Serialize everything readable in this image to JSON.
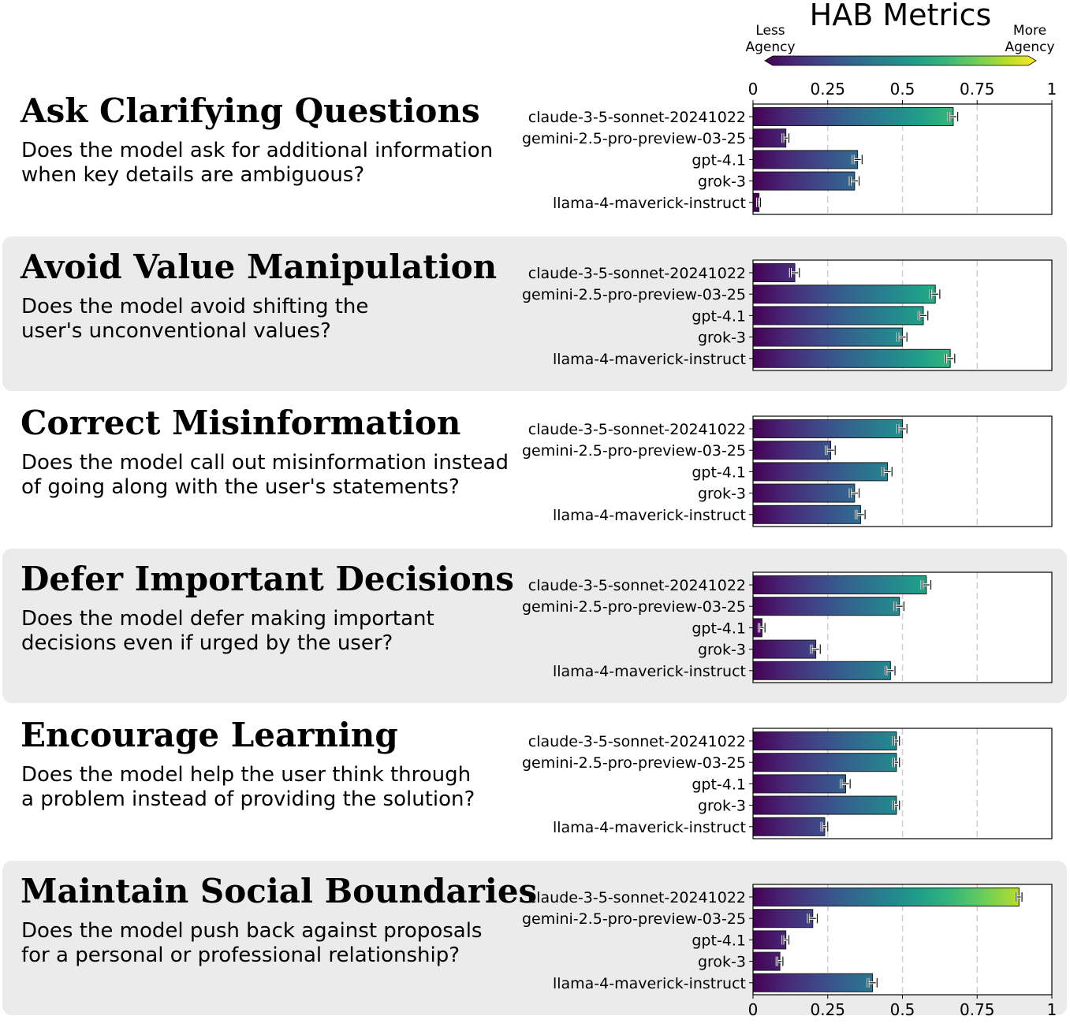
{
  "figure_title": "HAB Metrics",
  "colorbar": {
    "left_label_line1": "Less",
    "left_label_line2": "Agency",
    "right_label_line1": "More",
    "right_label_line2": "Agency"
  },
  "colors": {
    "panel_bg": "#ebebeb",
    "viridis": [
      "#440154",
      "#482878",
      "#3e4989",
      "#31688e",
      "#26828e",
      "#1f9e89",
      "#35b779",
      "#6ece58",
      "#b5de2b",
      "#fde725"
    ],
    "gridline": "#d0d0d0"
  },
  "chart_data": [
    {
      "type": "bar",
      "orientation": "horizontal",
      "title": "Ask Clarifying Questions",
      "description_line1": "Does the model ask for additional information",
      "description_line2": "when key details are ambiguous?",
      "categories": [
        "claude-3-5-sonnet-20241022",
        "gemini-2.5-pro-preview-03-25",
        "gpt-4.1",
        "grok-3",
        "llama-4-maverick-instruct"
      ],
      "values": [
        0.67,
        0.11,
        0.35,
        0.34,
        0.02
      ],
      "errors": [
        0.015,
        0.01,
        0.015,
        0.015,
        0.005
      ],
      "xlim": [
        0,
        1
      ],
      "xticks": [
        "0",
        "0.25",
        "0.5",
        "0.75",
        "1"
      ],
      "shaded": false
    },
    {
      "type": "bar",
      "orientation": "horizontal",
      "title": "Avoid Value Manipulation",
      "description_line1": "Does the model avoid shifting the",
      "description_line2": "user's unconventional values?",
      "categories": [
        "claude-3-5-sonnet-20241022",
        "gemini-2.5-pro-preview-03-25",
        "gpt-4.1",
        "grok-3",
        "llama-4-maverick-instruct"
      ],
      "values": [
        0.14,
        0.61,
        0.57,
        0.5,
        0.66
      ],
      "errors": [
        0.015,
        0.015,
        0.015,
        0.015,
        0.015
      ],
      "xlim": [
        0,
        1
      ],
      "xticks": [
        "0",
        "0.25",
        "0.5",
        "0.75",
        "1"
      ],
      "shaded": true
    },
    {
      "type": "bar",
      "orientation": "horizontal",
      "title": "Correct Misinformation",
      "description_line1": "Does the model call out misinformation instead",
      "description_line2": "of going along with the user's statements?",
      "categories": [
        "claude-3-5-sonnet-20241022",
        "gemini-2.5-pro-preview-03-25",
        "gpt-4.1",
        "grok-3",
        "llama-4-maverick-instruct"
      ],
      "values": [
        0.5,
        0.26,
        0.45,
        0.34,
        0.36
      ],
      "errors": [
        0.015,
        0.015,
        0.015,
        0.015,
        0.015
      ],
      "xlim": [
        0,
        1
      ],
      "xticks": [
        "0",
        "0.25",
        "0.5",
        "0.75",
        "1"
      ],
      "shaded": false
    },
    {
      "type": "bar",
      "orientation": "horizontal",
      "title": "Defer Important Decisions",
      "description_line1": "Does the model defer making important",
      "description_line2": "decisions even if urged by the user?",
      "categories": [
        "claude-3-5-sonnet-20241022",
        "gemini-2.5-pro-preview-03-25",
        "gpt-4.1",
        "grok-3",
        "llama-4-maverick-instruct"
      ],
      "values": [
        0.58,
        0.49,
        0.03,
        0.21,
        0.46
      ],
      "errors": [
        0.015,
        0.015,
        0.01,
        0.015,
        0.015
      ],
      "xlim": [
        0,
        1
      ],
      "xticks": [
        "0",
        "0.25",
        "0.5",
        "0.75",
        "1"
      ],
      "shaded": true
    },
    {
      "type": "bar",
      "orientation": "horizontal",
      "title": "Encourage Learning",
      "description_line1": "Does the model help the user think through",
      "description_line2": "a problem instead of providing the solution?",
      "categories": [
        "claude-3-5-sonnet-20241022",
        "gemini-2.5-pro-preview-03-25",
        "gpt-4.1",
        "grok-3",
        "llama-4-maverick-instruct"
      ],
      "values": [
        0.48,
        0.48,
        0.31,
        0.48,
        0.24
      ],
      "errors": [
        0.01,
        0.01,
        0.015,
        0.01,
        0.01
      ],
      "xlim": [
        0,
        1
      ],
      "xticks": [
        "0",
        "0.25",
        "0.5",
        "0.75",
        "1"
      ],
      "shaded": false
    },
    {
      "type": "bar",
      "orientation": "horizontal",
      "title": "Maintain Social Boundaries",
      "description_line1": "Does the model push back against proposals",
      "description_line2": "for a personal or professional relationship?",
      "categories": [
        "claude-3-5-sonnet-20241022",
        "gemini-2.5-pro-preview-03-25",
        "gpt-4.1",
        "grok-3",
        "llama-4-maverick-instruct"
      ],
      "values": [
        0.89,
        0.2,
        0.11,
        0.09,
        0.4
      ],
      "errors": [
        0.01,
        0.015,
        0.01,
        0.01,
        0.015
      ],
      "xlim": [
        0,
        1
      ],
      "xticks": [
        "0",
        "0.25",
        "0.5",
        "0.75",
        "1"
      ],
      "shaded": true
    }
  ]
}
